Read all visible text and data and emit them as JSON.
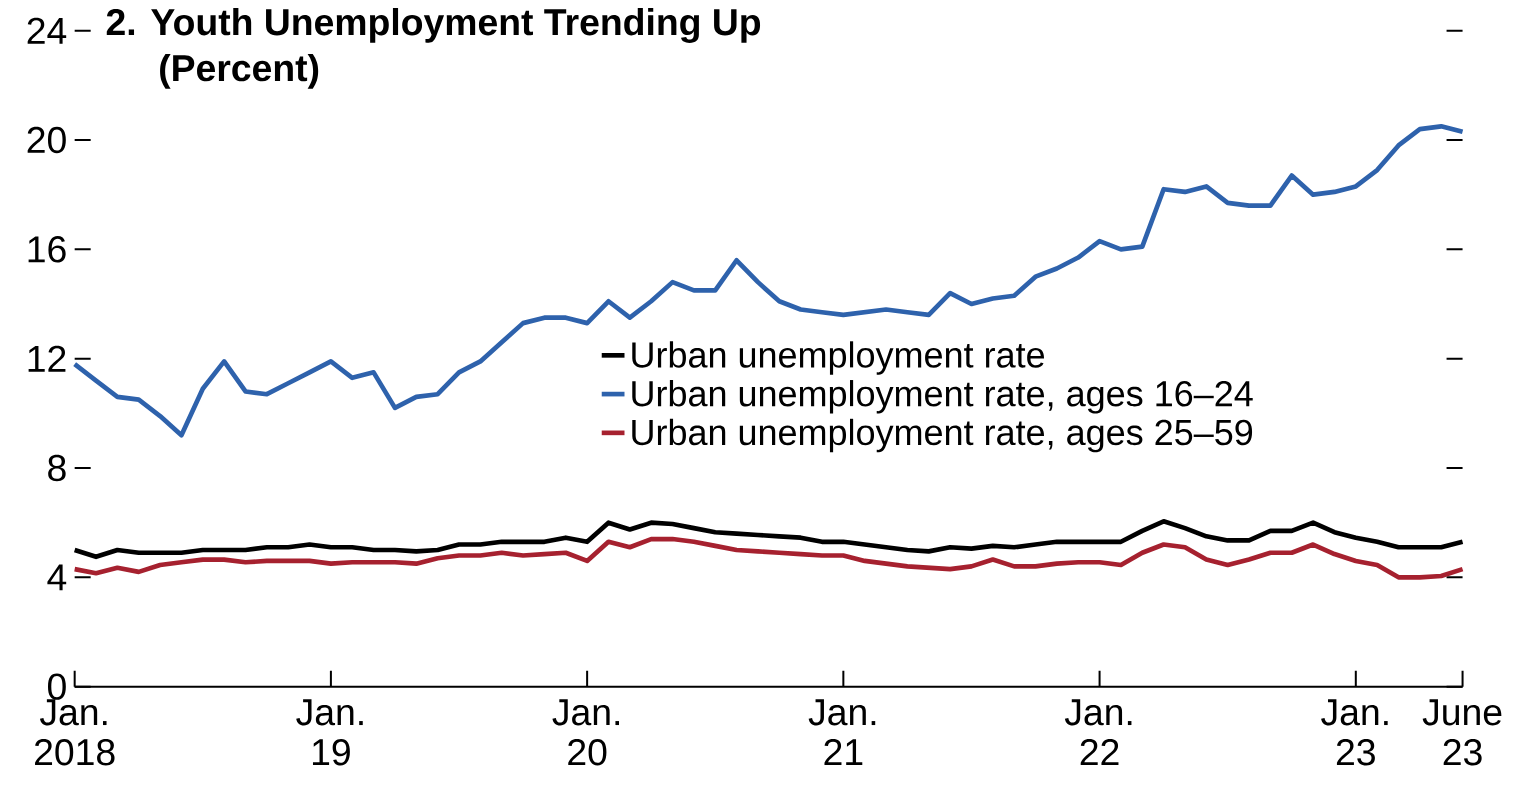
{
  "chart_data": {
    "type": "line",
    "title": "2. Youth Unemployment Trending Up",
    "subtitle": "(Percent)",
    "x": [
      "2018-01",
      "2018-02",
      "2018-03",
      "2018-04",
      "2018-05",
      "2018-06",
      "2018-07",
      "2018-08",
      "2018-09",
      "2018-10",
      "2018-11",
      "2018-12",
      "2019-01",
      "2019-02",
      "2019-03",
      "2019-04",
      "2019-05",
      "2019-06",
      "2019-07",
      "2019-08",
      "2019-09",
      "2019-10",
      "2019-11",
      "2019-12",
      "2020-01",
      "2020-02",
      "2020-03",
      "2020-04",
      "2020-05",
      "2020-06",
      "2020-07",
      "2020-08",
      "2020-09",
      "2020-10",
      "2020-11",
      "2020-12",
      "2021-01",
      "2021-02",
      "2021-03",
      "2021-04",
      "2021-05",
      "2021-06",
      "2021-07",
      "2021-08",
      "2021-09",
      "2021-10",
      "2021-11",
      "2021-12",
      "2022-01",
      "2022-02",
      "2022-03",
      "2022-04",
      "2022-05",
      "2022-06",
      "2022-07",
      "2022-08",
      "2022-09",
      "2022-10",
      "2022-11",
      "2022-12",
      "2023-01",
      "2023-02",
      "2023-03",
      "2023-04",
      "2023-05",
      "2023-06"
    ],
    "series": [
      {
        "name": "Urban unemployment rate",
        "color": "#000000",
        "values": [
          5.0,
          4.75,
          5.0,
          4.9,
          4.9,
          4.9,
          5.0,
          5.0,
          5.0,
          5.1,
          5.1,
          5.2,
          5.1,
          5.1,
          5.0,
          5.0,
          4.95,
          5.0,
          5.2,
          5.2,
          5.3,
          5.3,
          5.3,
          5.45,
          5.3,
          6.0,
          5.75,
          6.0,
          5.95,
          5.8,
          5.65,
          5.6,
          5.55,
          5.5,
          5.45,
          5.3,
          5.3,
          5.2,
          5.1,
          5.0,
          4.95,
          5.1,
          5.05,
          5.15,
          5.1,
          5.2,
          5.3,
          5.3,
          5.3,
          5.3,
          5.7,
          6.05,
          5.8,
          5.5,
          5.35,
          5.35,
          5.7,
          5.7,
          6.0,
          5.65,
          5.45,
          5.3,
          5.1,
          5.1,
          5.1,
          5.3
        ]
      },
      {
        "name": "Urban unemployment rate, ages 16–24",
        "color": "#2e62ac",
        "values": [
          11.8,
          11.2,
          10.6,
          10.5,
          9.9,
          9.2,
          10.9,
          11.9,
          10.8,
          10.7,
          11.1,
          11.5,
          11.9,
          11.3,
          11.5,
          10.2,
          10.6,
          10.7,
          11.5,
          11.9,
          12.6,
          13.3,
          13.5,
          13.5,
          13.3,
          14.1,
          13.5,
          14.1,
          14.8,
          14.5,
          14.5,
          15.6,
          14.8,
          14.1,
          13.8,
          13.7,
          13.6,
          13.7,
          13.8,
          13.7,
          13.6,
          14.4,
          14.0,
          14.2,
          14.3,
          15.0,
          15.3,
          15.7,
          16.3,
          16.0,
          16.1,
          18.2,
          18.1,
          18.3,
          17.7,
          17.6,
          17.6,
          18.7,
          18.0,
          18.1,
          18.3,
          18.9,
          19.8,
          20.4,
          20.5,
          20.3
        ]
      },
      {
        "name": "Urban unemployment rate, ages 25–59",
        "color": "#a6212f",
        "values": [
          4.3,
          4.15,
          4.35,
          4.2,
          4.45,
          4.55,
          4.65,
          4.65,
          4.55,
          4.6,
          4.6,
          4.6,
          4.5,
          4.55,
          4.55,
          4.55,
          4.5,
          4.7,
          4.8,
          4.8,
          4.9,
          4.8,
          4.85,
          4.9,
          4.6,
          5.3,
          5.1,
          5.4,
          5.4,
          5.3,
          5.15,
          5.0,
          4.95,
          4.9,
          4.85,
          4.8,
          4.8,
          4.6,
          4.5,
          4.4,
          4.35,
          4.3,
          4.4,
          4.65,
          4.4,
          4.4,
          4.5,
          4.55,
          4.55,
          4.45,
          4.9,
          5.2,
          5.1,
          4.65,
          4.45,
          4.65,
          4.9,
          4.9,
          5.2,
          4.85,
          4.6,
          4.45,
          4.0,
          4.0,
          4.05,
          4.3
        ]
      }
    ],
    "xlim": [
      "2018-01",
      "2023-06"
    ],
    "xticks": [
      {
        "value": "2018-01",
        "label": "Jan. 2018"
      },
      {
        "value": "2019-01",
        "label": "Jan. 19"
      },
      {
        "value": "2020-01",
        "label": "Jan. 20"
      },
      {
        "value": "2021-01",
        "label": "Jan. 21"
      },
      {
        "value": "2022-01",
        "label": "Jan. 22"
      },
      {
        "value": "2023-01",
        "label": "Jan. 23"
      },
      {
        "value": "2023-06",
        "label": "June 23"
      }
    ],
    "ylim": [
      0,
      24
    ],
    "yticks": [
      0,
      4,
      8,
      12,
      16,
      20,
      24
    ],
    "legend": "right",
    "marker": "none",
    "line_style": "solid",
    "grid": false
  }
}
